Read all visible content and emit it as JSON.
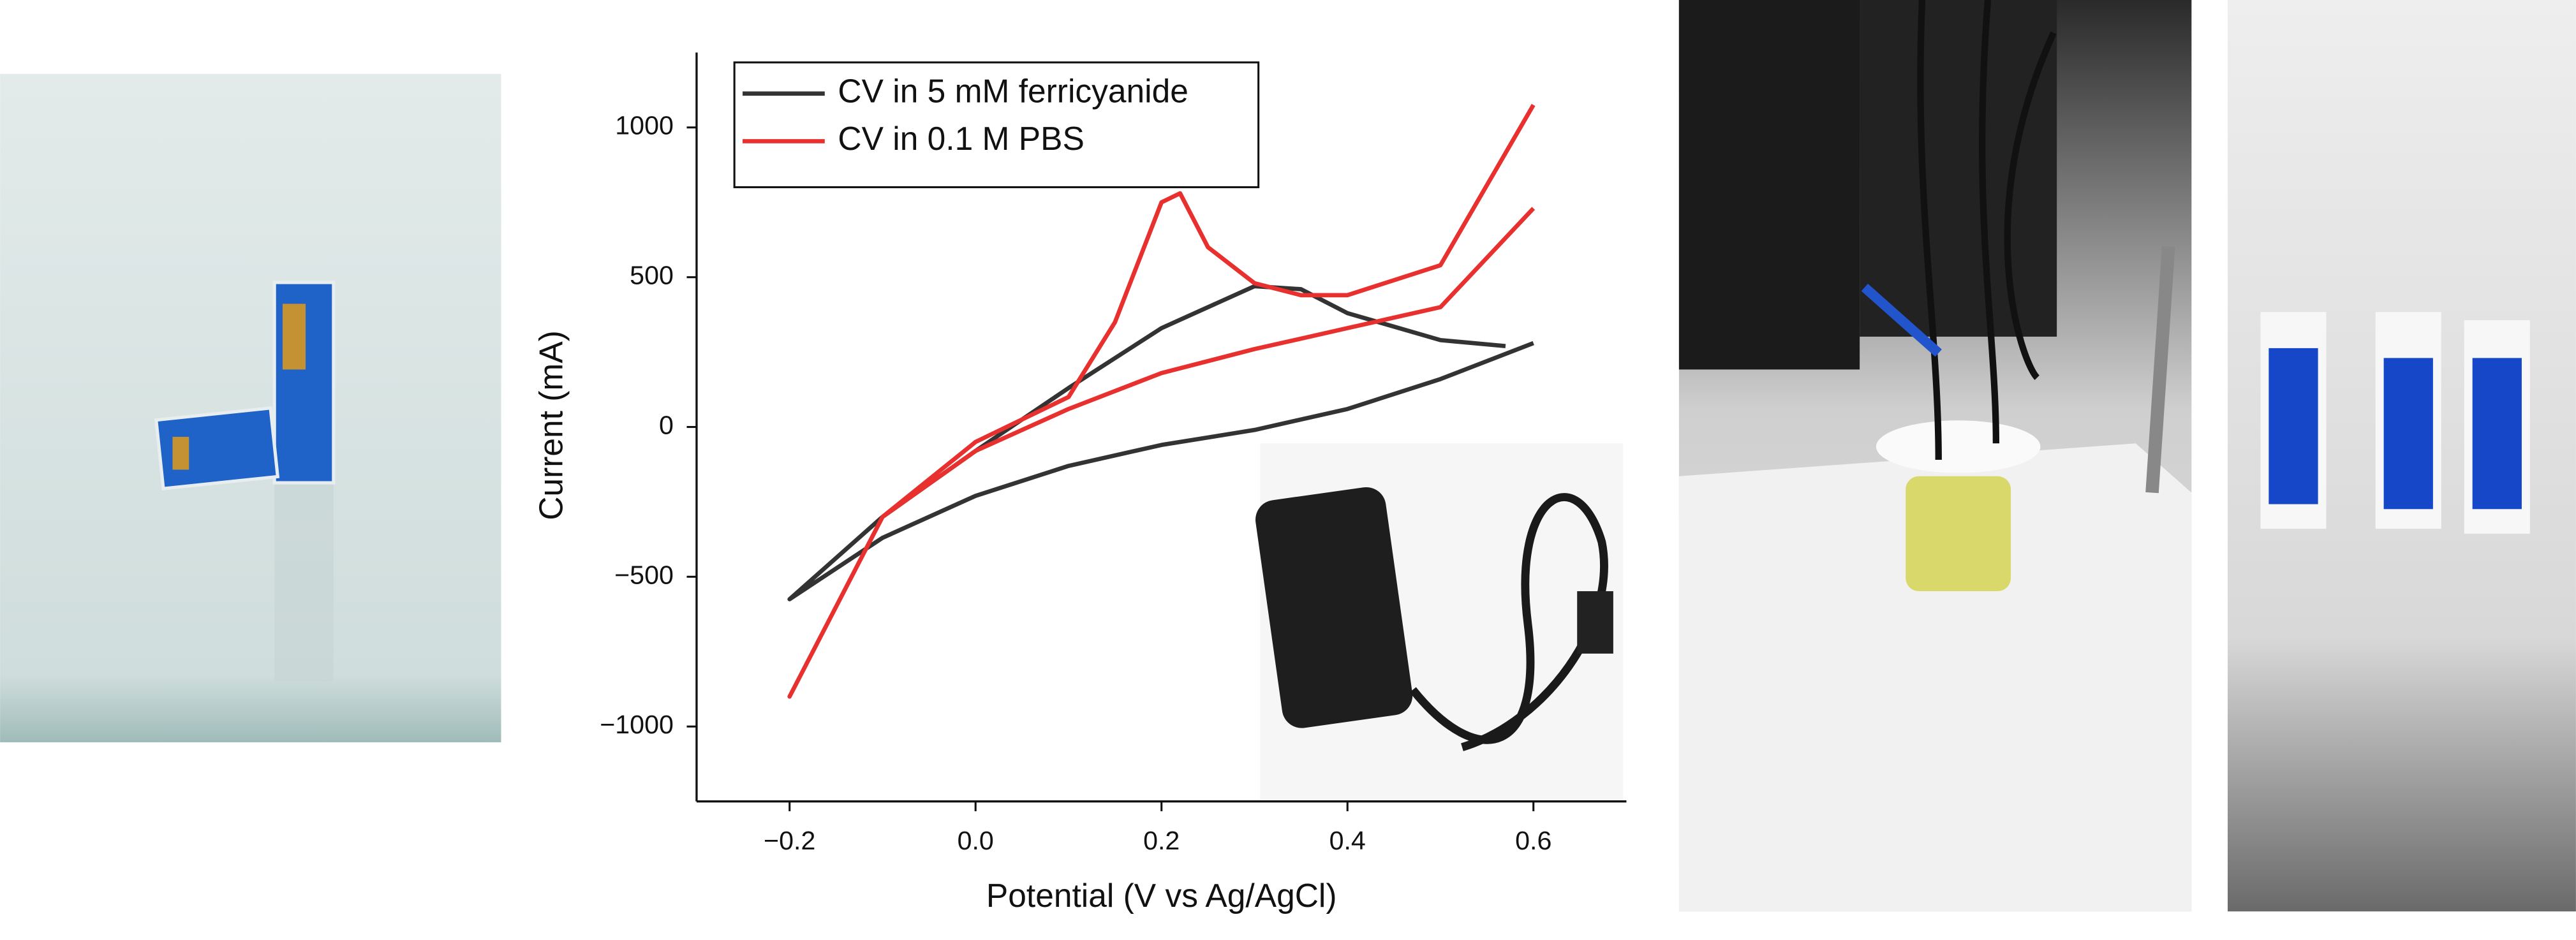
{
  "chart_data": {
    "type": "line",
    "x_label": "Potential (V vs Ag/AgCl)",
    "y_label": "Current (mA)",
    "xlim": [
      -0.3,
      0.7
    ],
    "ylim": [
      -1250,
      1250
    ],
    "xticks": [
      {
        "value": -0.2,
        "label": "−0.2"
      },
      {
        "value": 0,
        "label": "0.0"
      },
      {
        "value": 0.2,
        "label": "0.2"
      },
      {
        "value": 0.4,
        "label": "0.4"
      },
      {
        "value": 0.6,
        "label": "0.6"
      }
    ],
    "yticks": [
      1000,
      500,
      0,
      {
        "value": -500,
        "label": "−500"
      },
      {
        "value": -1000,
        "label": "−1000"
      }
    ],
    "legend": "upper left",
    "series": [
      {
        "name": "CV in 5 mM ferricyanide",
        "color": "#333333",
        "x": [
          0.6,
          0.5,
          0.4,
          0.3,
          0.2,
          0.1,
          0.0,
          -0.1,
          -0.2,
          -0.1,
          0.0,
          0.1,
          0.2,
          0.3,
          0.35,
          0.4,
          0.5,
          0.57
        ],
        "values": [
          280,
          160,
          60,
          -10,
          -60,
          -130,
          -230,
          -370,
          -575,
          -300,
          -80,
          130,
          330,
          470,
          460,
          380,
          290,
          270
        ]
      },
      {
        "name": "CV in 0.1 M PBS",
        "color": "#e8302f",
        "x": [
          0.6,
          0.5,
          0.4,
          0.3,
          0.2,
          0.1,
          0.0,
          -0.1,
          -0.2,
          -0.1,
          0.0,
          0.1,
          0.15,
          0.2,
          0.22,
          0.25,
          0.3,
          0.35,
          0.4,
          0.5,
          0.6
        ],
        "values": [
          730,
          400,
          330,
          260,
          180,
          60,
          -80,
          -300,
          -900,
          -300,
          -50,
          100,
          350,
          750,
          780,
          600,
          480,
          440,
          440,
          540,
          1075
        ]
      }
    ]
  }
}
